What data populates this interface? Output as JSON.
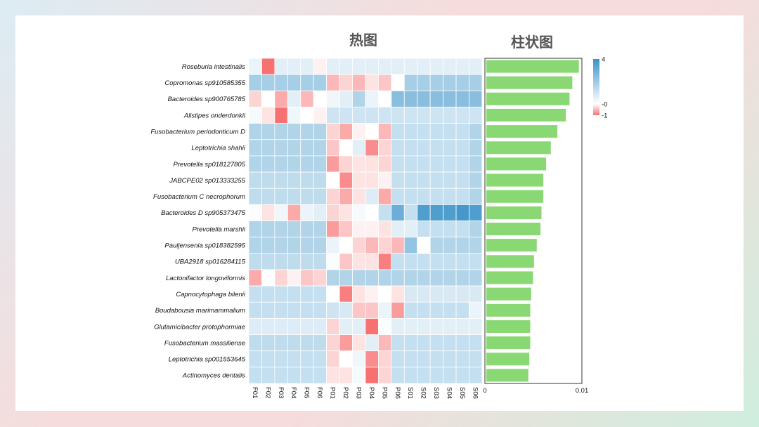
{
  "chart_data": [
    {
      "type": "heatmap",
      "title": "热图",
      "rows": [
        "Roseburia intestinalis",
        "Copromonas sp910585355",
        "Bacteroides sp900765785",
        "Alistipes onderdonkii",
        "Fusobacterium periodonticum D",
        "Leptotrichia shahii",
        "Prevotella sp018127805",
        "JABCPE02 sp013333255",
        "Fusobacterium C necrophorum",
        "Bacteroides D sp905373475",
        "Prevotella marshii",
        "Pauljensenia sp018382595",
        "UBA2918 sp016284115",
        "Lactonifactor longoviformis",
        "Capnocytophaga bilenii",
        "Boudabousia marimammalium",
        "Glutamicibacter protophormiae",
        "Fusobacterium massiliense",
        "Leptotrichia sp001553645",
        "Actinomyces dentalis"
      ],
      "columns": [
        "F01",
        "F02",
        "F03",
        "F04",
        "F05",
        "F06",
        "P01",
        "P02",
        "P03",
        "P04",
        "P05",
        "P06",
        "S01",
        "S02",
        "S03",
        "S04",
        "S05",
        "S06"
      ],
      "values": [
        [
          0.4,
          -1,
          0.6,
          0.6,
          0.6,
          -0.1,
          0.6,
          0.6,
          0.6,
          0.6,
          0.6,
          0.6,
          0.6,
          0.6,
          0.6,
          0.6,
          0.6,
          0.6
        ],
        [
          1.8,
          1.8,
          1.8,
          1.8,
          1.8,
          1.8,
          -0.5,
          -0.3,
          -0.5,
          -0.2,
          -0.4,
          0,
          1.8,
          1.8,
          1.8,
          1.8,
          1.8,
          1.8
        ],
        [
          -0.3,
          0,
          -0.6,
          0.6,
          -0.5,
          0,
          0.3,
          0.6,
          1.6,
          0.4,
          0,
          2.4,
          2.4,
          2.4,
          2.4,
          2.4,
          2.4,
          2.4
        ],
        [
          0.2,
          -0.2,
          -1,
          0.3,
          0,
          -0.1,
          1,
          1,
          1,
          1,
          1,
          1,
          1,
          1,
          1,
          1,
          1,
          1
        ],
        [
          1.6,
          1.6,
          1.6,
          1.6,
          1.6,
          1.6,
          -0.3,
          -0.6,
          -0.1,
          0,
          -0.5,
          1.2,
          1.2,
          1.2,
          1.2,
          1.2,
          1.2,
          1.6
        ],
        [
          1.6,
          1.6,
          1.6,
          1.6,
          1.6,
          1.6,
          -0.4,
          0,
          0.6,
          -0.8,
          -0.3,
          1.2,
          1.2,
          1.2,
          1.2,
          1.2,
          1.2,
          1.6
        ],
        [
          1.6,
          1.6,
          1.6,
          1.6,
          1.6,
          1.6,
          -0.7,
          -0.3,
          -0.2,
          -0.2,
          -0.3,
          1.2,
          1.2,
          1.2,
          1.2,
          1.2,
          1.2,
          1.6
        ],
        [
          1.3,
          1.3,
          1.3,
          1.3,
          1.3,
          1.3,
          0,
          -0.8,
          -0.2,
          -0.2,
          -0.1,
          1.2,
          1.2,
          1.2,
          1.2,
          1.2,
          1.2,
          1.6
        ],
        [
          1.3,
          1.3,
          1.3,
          1.3,
          1.3,
          1.3,
          -0.3,
          -0.6,
          -0.2,
          0.7,
          -0.6,
          1.2,
          1.2,
          1.2,
          1.2,
          1.2,
          1.2,
          1.6
        ],
        [
          0.1,
          -0.2,
          0.3,
          -0.6,
          0.4,
          0.6,
          -0.3,
          -0.2,
          0.2,
          0,
          1.2,
          3,
          1.2,
          3.6,
          3.6,
          3.6,
          3.8,
          3.6
        ],
        [
          1.6,
          1.6,
          1.6,
          1.6,
          1.6,
          1.6,
          -0.7,
          -0.4,
          -0.1,
          -0.1,
          -0.2,
          0.6,
          0.6,
          1.2,
          1.2,
          1.2,
          1.2,
          1.6
        ],
        [
          1.6,
          1.6,
          1.6,
          1.6,
          1.6,
          1.6,
          0.4,
          0,
          -0.3,
          -0.5,
          -0.3,
          -0.5,
          2.2,
          0,
          1.6,
          1.6,
          1.6,
          1.6
        ],
        [
          1.3,
          1.3,
          1.3,
          1.3,
          1.3,
          1.3,
          0.1,
          -0.4,
          -0.2,
          -0.2,
          -0.9,
          1.2,
          1.2,
          1.2,
          1.2,
          1.2,
          1.2,
          1.2
        ],
        [
          -0.6,
          0,
          -0.3,
          -0.1,
          -0.4,
          -0.3,
          1.6,
          1.6,
          1.6,
          1.6,
          1.6,
          1.6,
          1.6,
          1.6,
          1.6,
          1.6,
          1.6,
          1.6
        ],
        [
          1.2,
          1.2,
          1.2,
          1.2,
          1.2,
          1.2,
          0,
          -0.9,
          -0.2,
          -0.1,
          0,
          -0.2,
          0.8,
          0.8,
          0.8,
          0.8,
          0.8,
          0.8
        ],
        [
          1.2,
          1.2,
          1.2,
          1.2,
          1.2,
          1.2,
          1,
          0.8,
          -0.4,
          -0.4,
          0.4,
          -0.7,
          1.2,
          1.2,
          1.2,
          1.2,
          1.2,
          0.4
        ],
        [
          0.7,
          0.7,
          0.7,
          0.7,
          0.7,
          0.7,
          -0.3,
          0.6,
          0.6,
          -1,
          0.1,
          0.6,
          0.6,
          0.6,
          0.6,
          0.6,
          0.6,
          0.6
        ],
        [
          1.3,
          1.3,
          1.3,
          1.3,
          1.3,
          1.3,
          -0.3,
          -0.7,
          -0.2,
          0.6,
          -0.5,
          1.2,
          1.2,
          1.2,
          1.2,
          1.2,
          1.2,
          1.2
        ],
        [
          1.2,
          1.2,
          1.2,
          1.2,
          1.2,
          1.2,
          -0.3,
          0,
          0.3,
          -0.8,
          -0.3,
          1.2,
          1.2,
          1.2,
          1.2,
          1.2,
          1.2,
          1.2
        ],
        [
          1.2,
          1.2,
          1.2,
          1.2,
          1.2,
          1.2,
          -0.2,
          -0.2,
          0.2,
          -1,
          -0.3,
          1.2,
          1.2,
          1.2,
          1.2,
          1.2,
          1.2,
          1.2
        ]
      ],
      "color_scale": {
        "ticks": [
          {
            "value": 4,
            "label": "4"
          },
          {
            "value": 0,
            "label": "-0"
          },
          {
            "value": -1,
            "label": "-1"
          }
        ],
        "min": -1,
        "max": 4,
        "neg_color": "#f87171",
        "mid_color": "#ffffff",
        "pos_color": "#3b93c9"
      }
    },
    {
      "type": "bar",
      "orientation": "horizontal",
      "title": "柱状图",
      "categories": [
        "Roseburia intestinalis",
        "Copromonas sp910585355",
        "Bacteroides sp900765785",
        "Alistipes onderdonkii",
        "Fusobacterium periodonticum D",
        "Leptotrichia shahii",
        "Prevotella sp018127805",
        "JABCPE02 sp013333255",
        "Fusobacterium C necrophorum",
        "Bacteroides D sp905373475",
        "Prevotella marshii",
        "Pauljensenia sp018382595",
        "UBA2918 sp016284115",
        "Lactonifactor longoviformis",
        "Capnocytophaga bilenii",
        "Boudabousia marimammalium",
        "Glutamicibacter protophormiae",
        "Fusobacterium massiliense",
        "Leptotrichia sp001553645",
        "Actinomyces dentalis"
      ],
      "values": [
        0.0099,
        0.0092,
        0.0089,
        0.0085,
        0.0076,
        0.0069,
        0.0064,
        0.0061,
        0.0061,
        0.0059,
        0.0058,
        0.0054,
        0.0051,
        0.005,
        0.0048,
        0.0047,
        0.0047,
        0.0047,
        0.0046,
        0.0045
      ],
      "xlim": [
        0,
        0.01
      ],
      "ticks": [
        {
          "value": 0,
          "label": "0"
        },
        {
          "value": 0.01,
          "label": "0.01"
        }
      ],
      "bar_color": "#8ad874"
    }
  ]
}
